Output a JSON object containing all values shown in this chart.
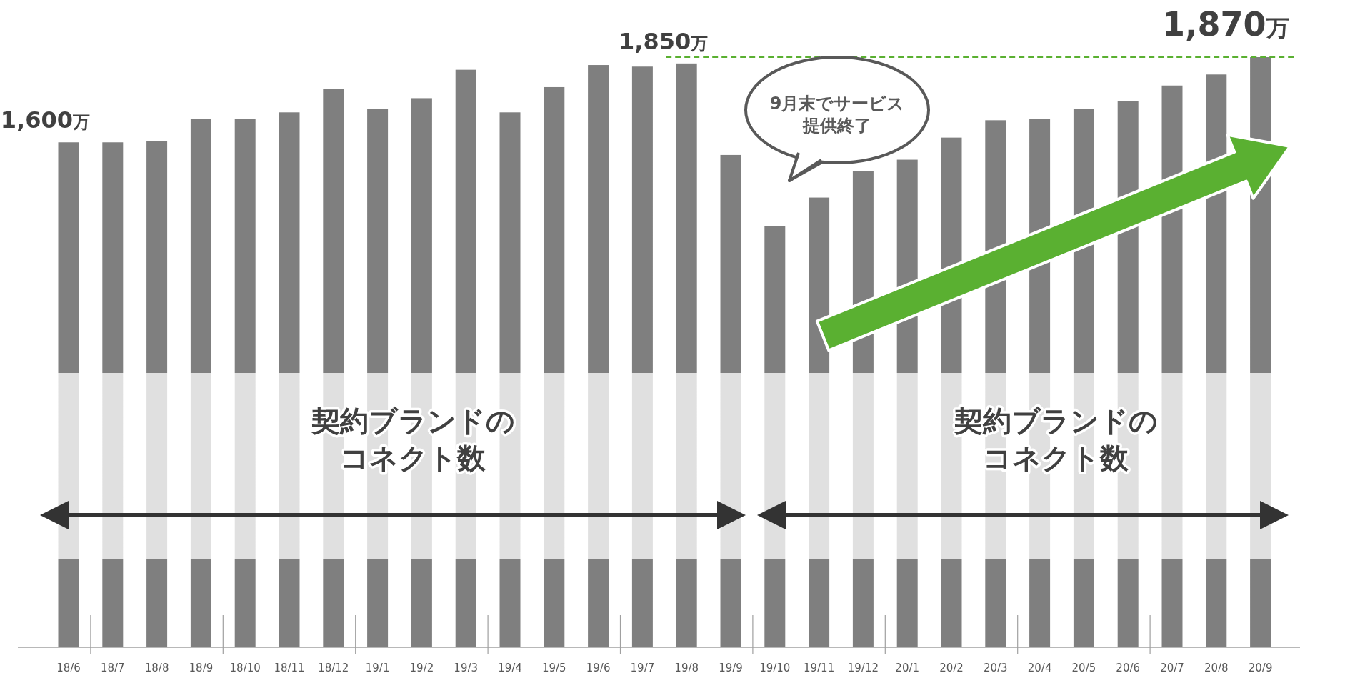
{
  "chart_data": {
    "type": "bar",
    "categories": [
      "18/6",
      "18/7",
      "18/8",
      "18/9",
      "18/10",
      "18/11",
      "18/12",
      "19/1",
      "19/2",
      "19/3",
      "19/4",
      "19/5",
      "19/6",
      "19/7",
      "19/8",
      "19/9",
      "19/10",
      "19/11",
      "19/12",
      "20/1",
      "20/2",
      "20/3",
      "20/4",
      "20/5",
      "20/6",
      "20/7",
      "20/8",
      "20/9"
    ],
    "values": [
      1600,
      1600,
      1605,
      1675,
      1675,
      1695,
      1770,
      1705,
      1740,
      1830,
      1695,
      1775,
      1845,
      1840,
      1850,
      1560,
      1335,
      1425,
      1510,
      1545,
      1615,
      1670,
      1675,
      1705,
      1730,
      1780,
      1815,
      1870
    ],
    "value_labels": [
      "1,600万",
      null,
      null,
      null,
      null,
      null,
      null,
      null,
      null,
      null,
      null,
      null,
      null,
      null,
      "1,850万",
      null,
      null,
      null,
      null,
      null,
      null,
      null,
      null,
      null,
      null,
      null,
      null,
      "1,870万"
    ],
    "color": "#7f7f7f",
    "ref_lines": [
      {
        "axis": "y",
        "value": 1870,
        "color": "#5ab031",
        "line_style": "dashed"
      }
    ],
    "annotations": [
      "契約ブランドのコネクト数",
      "契約ブランドのコネクト数",
      "9月末でサービス提供終了"
    ]
  }
}
